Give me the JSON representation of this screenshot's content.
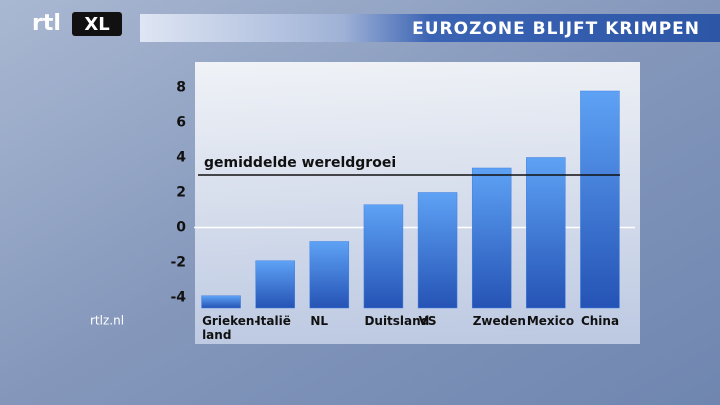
{
  "branding": {
    "logo": "rtl",
    "logo_badge": "XL",
    "website": "rtlz.nl"
  },
  "chart_data": {
    "type": "bar",
    "title": "EUROZONE BLIJFT KRIMPEN",
    "categories": [
      "Grieken-\nland",
      "Italië",
      "NL",
      "Duitsland",
      "VS",
      "Zweden",
      "Mexico",
      "China"
    ],
    "values": [
      -3.9,
      -1.9,
      -0.8,
      1.3,
      2.0,
      3.4,
      4.0,
      7.8
    ],
    "color": "#3f7fe0",
    "ylim": [
      -4.6,
      9
    ],
    "yticks": [
      -4,
      -2,
      0,
      2,
      4,
      6,
      8
    ],
    "reference_line": {
      "value": 3.0,
      "label": "gemiddelde wereldgroei"
    }
  }
}
